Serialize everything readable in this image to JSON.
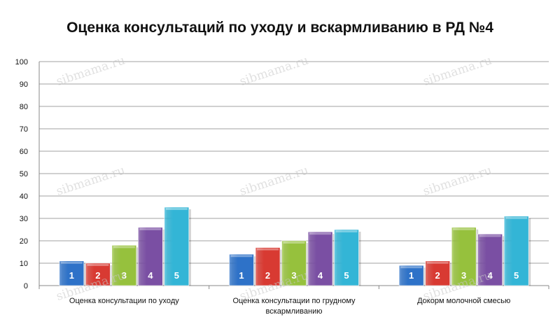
{
  "watermark": "sibmama.ru",
  "chart_data": {
    "type": "bar",
    "title": "Оценка консультаций по уходу и вскармливанию в РД №4",
    "xlabel": "",
    "ylabel": "",
    "ylim": [
      0,
      100
    ],
    "yticks": [
      "0",
      "10",
      "20",
      "30",
      "40",
      "50",
      "60",
      "70",
      "80",
      "90",
      "100"
    ],
    "grid": true,
    "legend": "none",
    "categories": [
      "Оценка консультации по уходу",
      "Оценка консультации по грудному вскармливанию",
      "Докорм молочной смесью"
    ],
    "series": [
      {
        "name": "1",
        "color": "#2e72c8",
        "values": [
          11,
          14,
          9
        ]
      },
      {
        "name": "2",
        "color": "#d83a32",
        "values": [
          10,
          17,
          11
        ]
      },
      {
        "name": "3",
        "color": "#96c13d",
        "values": [
          18,
          20,
          26
        ]
      },
      {
        "name": "4",
        "color": "#7a4fa3",
        "values": [
          26,
          24,
          23
        ]
      },
      {
        "name": "5",
        "color": "#33b5d6",
        "values": [
          35,
          25,
          31
        ]
      }
    ]
  }
}
